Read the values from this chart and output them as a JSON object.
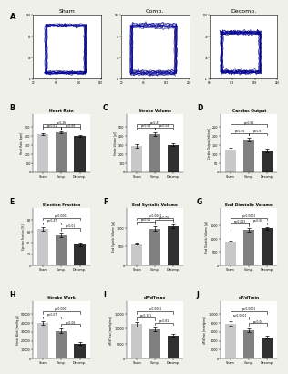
{
  "panel_A_labels": [
    "Sham",
    "Comp.",
    "Decomp."
  ],
  "bar_groups": {
    "B": {
      "title": "Heart Rate",
      "ylabel": "Heart Rate [bpm]",
      "values": [
        420,
        435,
        400
      ],
      "errors": [
        8,
        10,
        12
      ],
      "ylim": [
        0,
        500
      ],
      "yticks": [
        0,
        100,
        200,
        300,
        400,
        500
      ],
      "p_bracket_top": [
        "p=0.26",
        [
          0,
          2
        ]
      ],
      "p_brackets_inner": [
        [
          "p=0.61",
          [
            0,
            1
          ]
        ],
        [
          "p=0.66",
          [
            1,
            2
          ]
        ]
      ]
    },
    "C": {
      "title": "Stroke Volume",
      "ylabel": "Stroke Volume [µl]",
      "values": [
        290,
        420,
        300
      ],
      "errors": [
        18,
        22,
        16
      ],
      "ylim": [
        0,
        500
      ],
      "yticks": [
        0,
        100,
        200,
        300,
        400,
        500
      ],
      "p_bracket_top": [
        "p=0.47",
        [
          0,
          2
        ]
      ],
      "p_brackets_inner": [
        [
          "p=0.06",
          [
            0,
            1
          ]
        ],
        [
          "p=0.04",
          [
            1,
            2
          ]
        ]
      ]
    },
    "D": {
      "title": "Cardiac Output",
      "ylabel": "Cardiac Output [ml/min]",
      "values": [
        125,
        180,
        120
      ],
      "errors": [
        8,
        10,
        9
      ],
      "ylim": [
        0,
        250
      ],
      "yticks": [
        0,
        50,
        100,
        150,
        200,
        250
      ],
      "p_bracket_top": [
        "p=0.66",
        [
          0,
          2
        ]
      ],
      "p_brackets_inner": [
        [
          "p=0.06",
          [
            0,
            1
          ]
        ],
        [
          "p=0.67",
          [
            1,
            2
          ]
        ]
      ]
    },
    "E": {
      "title": "Ejection Fraction",
      "ylabel": "Ejection Fraction [%]",
      "values": [
        65,
        54,
        37
      ],
      "errors": [
        3,
        4,
        3
      ],
      "ylim": [
        0,
        80
      ],
      "yticks": [
        0,
        20,
        40,
        60,
        80
      ],
      "p_bracket_top": [
        "p<0.0001",
        [
          0,
          2
        ]
      ],
      "p_brackets_inner": [
        [
          "p=0.47",
          [
            0,
            1
          ]
        ],
        [
          "p=0.01",
          [
            1,
            2
          ]
        ]
      ]
    },
    "F": {
      "title": "End Systolic Volume",
      "ylabel": "End Systolic Volume [µl]",
      "values": [
        580,
        980,
        1040
      ],
      "errors": [
        35,
        55,
        50
      ],
      "ylim": [
        0,
        1200
      ],
      "yticks": [
        0,
        500,
        1000
      ],
      "p_bracket_top": [
        "p<0.0001",
        [
          0,
          2
        ]
      ],
      "p_brackets_inner": [
        [
          "p=0.01",
          [
            0,
            1
          ]
        ],
        [
          "p=0.05",
          [
            1,
            2
          ]
        ]
      ]
    },
    "G": {
      "title": "End Diastolic Volume",
      "ylabel": "End Diastolic Volume [µl]",
      "values": [
        880,
        1340,
        1390
      ],
      "errors": [
        45,
        65,
        60
      ],
      "ylim": [
        0,
        1700
      ],
      "yticks": [
        0,
        500,
        1000,
        1500
      ],
      "p_bracket_top": [
        "p<0.0001",
        [
          0,
          2
        ]
      ],
      "p_brackets_inner": [
        [
          "p=0.013",
          [
            0,
            1
          ]
        ],
        [
          "p=0.68",
          [
            1,
            2
          ]
        ]
      ]
    },
    "H": {
      "title": "Stroke Work",
      "ylabel": "Stroke Work [mmHg·µl]",
      "values": [
        40000,
        31000,
        17000
      ],
      "errors": [
        1800,
        2200,
        1400
      ],
      "ylim": [
        0,
        50000
      ],
      "yticks": [
        0,
        10000,
        20000,
        30000,
        40000,
        50000
      ],
      "p_bracket_top": [
        "p<0.0001",
        [
          0,
          2
        ]
      ],
      "p_brackets_inner": [
        [
          "p=0.07",
          [
            0,
            1
          ]
        ],
        [
          "p=0.06",
          [
            1,
            2
          ]
        ]
      ]
    },
    "I": {
      "title": "dP/dTmax",
      "ylabel": "dP/dTmax [mmHg/ms]",
      "values": [
        11500,
        9800,
        7800
      ],
      "errors": [
        700,
        650,
        550
      ],
      "ylim": [
        0,
        15000
      ],
      "yticks": [
        0,
        5000,
        10000,
        15000
      ],
      "p_bracket_top": [
        "p<0.0001",
        [
          0,
          2
        ]
      ],
      "p_brackets_inner": [
        [
          "p=0.101",
          [
            0,
            1
          ]
        ],
        [
          "p=0.81",
          [
            1,
            2
          ]
        ]
      ]
    },
    "J": {
      "title": "dP/dTmin",
      "ylabel": "dP/dTmin [mmHg/ms]",
      "values": [
        7800,
        6400,
        4800
      ],
      "errors": [
        480,
        420,
        380
      ],
      "ylim": [
        0,
        10000
      ],
      "yticks": [
        0,
        2000,
        4000,
        6000,
        8000,
        10000
      ],
      "p_bracket_top": [
        "p<0.0001",
        [
          0,
          2
        ]
      ],
      "p_brackets_inner": [
        [
          "p<0.0001",
          [
            0,
            1
          ]
        ],
        [
          "p=0.06",
          [
            1,
            2
          ]
        ]
      ]
    }
  },
  "bar_colors": [
    "#c8c8c8",
    "#808080",
    "#303030"
  ],
  "categories": [
    "Sham",
    "Comp.",
    "Decomp."
  ],
  "bg_color": "#f0f0eb"
}
